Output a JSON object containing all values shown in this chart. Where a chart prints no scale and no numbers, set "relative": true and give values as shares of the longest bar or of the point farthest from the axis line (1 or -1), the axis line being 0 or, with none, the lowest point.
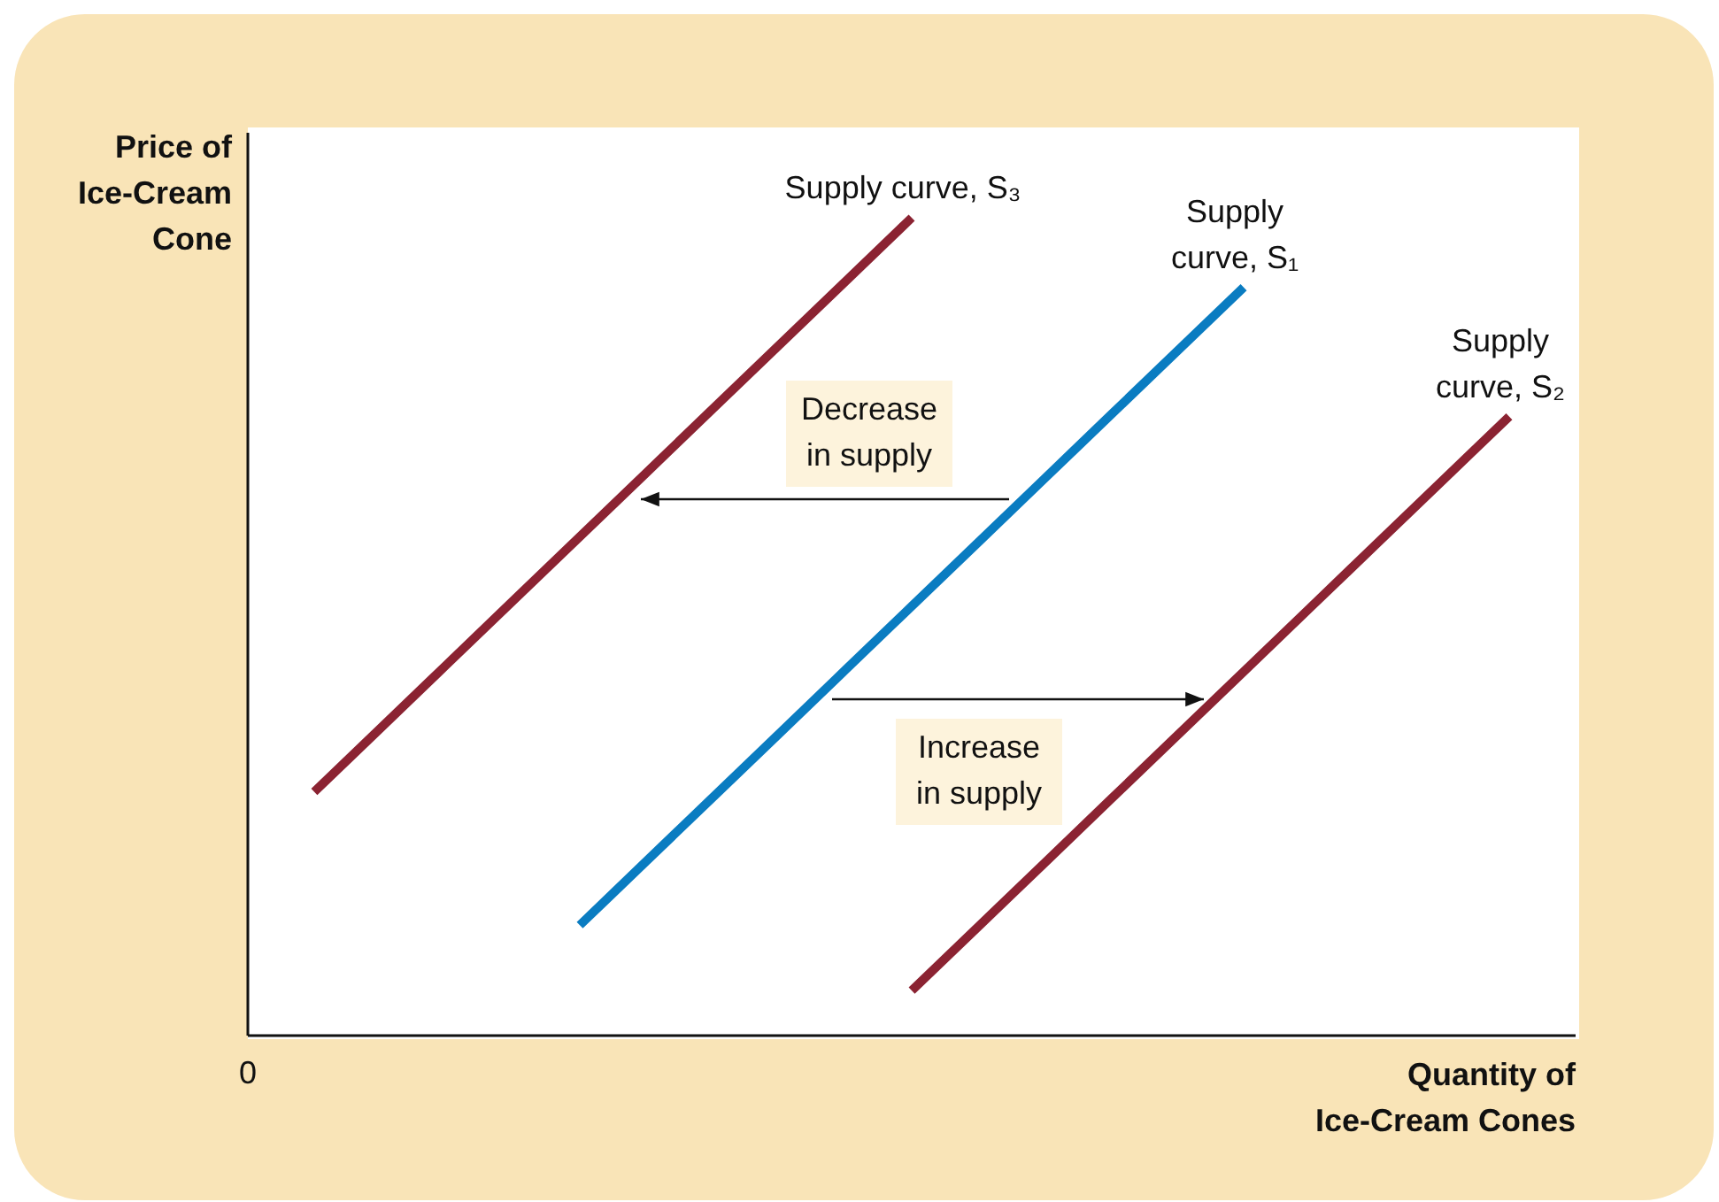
{
  "chart_data": {
    "type": "line",
    "relative": true,
    "xlabel": "Quantity of Ice-Cream Cones",
    "ylabel": "Price of Ice-Cream Cone",
    "categories": [
      null,
      null,
      null,
      null,
      null,
      null,
      null,
      null,
      null,
      null,
      null,
      null,
      null,
      null,
      null,
      null,
      null,
      null,
      null,
      null,
      null
    ],
    "series": [
      {
        "name": "Supply curve, S₃",
        "color": "#8b2332",
        "values": [
          null,
          0.298,
          0.376,
          0.454,
          0.532,
          0.61,
          0.688,
          0.766,
          0.844,
          0.922,
          1.0,
          null,
          null,
          null,
          null,
          null,
          null,
          null,
          null,
          null,
          null
        ]
      },
      {
        "name": "Supply curve, S₁",
        "color": "#0a7cc1",
        "values": [
          null,
          null,
          null,
          null,
          null,
          0.135,
          0.213,
          0.291,
          0.369,
          0.447,
          0.525,
          0.603,
          0.681,
          0.759,
          0.837,
          0.915,
          null,
          null,
          null,
          null,
          null
        ]
      },
      {
        "name": "Supply curve, S₂",
        "color": "#8b2332",
        "values": [
          null,
          null,
          null,
          null,
          null,
          null,
          null,
          null,
          null,
          null,
          0.055,
          0.133,
          0.211,
          0.289,
          0.367,
          0.445,
          0.523,
          0.601,
          0.679,
          0.757,
          null
        ]
      }
    ],
    "annotations": [
      "Decrease in supply",
      "Increase in supply",
      "0"
    ]
  }
}
